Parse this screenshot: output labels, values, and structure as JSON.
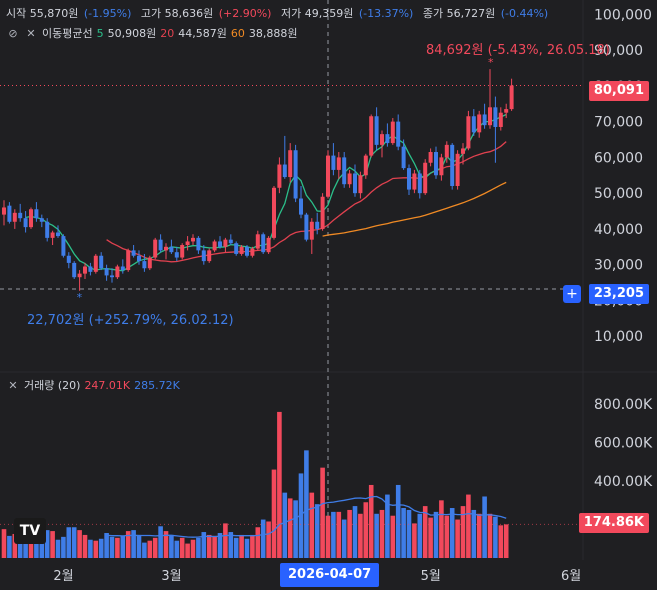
{
  "header": {
    "open_label": "시작",
    "open_value": "55,870원",
    "open_change": "(-1.95%)",
    "high_label": "고가",
    "high_value": "58,636원",
    "high_change": "(+2.90%)",
    "low_label": "저가",
    "low_value": "49,359원",
    "low_change": "(-13.37%)",
    "close_label": "종가",
    "close_value": "56,727원",
    "close_change": "(-0.44%)",
    "ma_label": "이동평균선",
    "ma5_period": "5",
    "ma5_value": "50,908원",
    "ma20_period": "20",
    "ma20_value": "44,587원",
    "ma60_period": "60",
    "ma60_value": "38,888원",
    "volume_label": "거래량 (20)",
    "volume_value": "247.01K",
    "volume_ma_value": "285.72K"
  },
  "annotations": {
    "high": "84,692원 (-5.43%, 26.05.18)",
    "low": "22,702원 (+252.79%, 26.02.12)"
  },
  "tags": {
    "last_price": "80,091",
    "crosshair_price": "23,205",
    "last_volume": "174.86K",
    "crosshair_date": "2026-04-07"
  },
  "colors": {
    "up": "#f2495c",
    "down": "#3f7de8",
    "ma5": "#2bbf8a",
    "ma20": "#e0414f",
    "ma60": "#f08a24",
    "vol_ma": "#3f7de8",
    "background": "#1f1f22",
    "grid": "#2a2a2e"
  },
  "chart_data": [
    {
      "type": "candlestick",
      "title": "",
      "y_ticks": [
        "100,000",
        "90,000",
        "80,000",
        "70,000",
        "60,000",
        "50,000",
        "40,000",
        "30,000",
        "20,000",
        "10,000"
      ],
      "ylim": [
        0,
        104000
      ],
      "x_ticks": [
        "2월",
        "3월",
        "4월",
        "5월",
        "6월"
      ],
      "last_price": 80091,
      "crosshair_price": 23205,
      "candles": [
        [
          44000,
          48000,
          41000,
          46000
        ],
        [
          46500,
          47500,
          41500,
          42000
        ],
        [
          42000,
          45500,
          40000,
          44500
        ],
        [
          44500,
          47000,
          42000,
          43000
        ],
        [
          43000,
          45000,
          39000,
          40500
        ],
        [
          40500,
          46000,
          40000,
          45500
        ],
        [
          45500,
          47500,
          42000,
          43000
        ],
        [
          43000,
          44000,
          40500,
          42000
        ],
        [
          42000,
          43000,
          36500,
          37500
        ],
        [
          37500,
          39500,
          35500,
          39000
        ],
        [
          39000,
          41000,
          37500,
          38000
        ],
        [
          38000,
          38500,
          32000,
          32500
        ],
        [
          32500,
          33500,
          29000,
          30500
        ],
        [
          30500,
          31000,
          26000,
          26500
        ],
        [
          26500,
          28500,
          22702,
          27500
        ],
        [
          27500,
          30500,
          26000,
          29500
        ],
        [
          29500,
          30500,
          27000,
          28000
        ],
        [
          28000,
          33000,
          27500,
          32500
        ],
        [
          32500,
          33500,
          28500,
          29000
        ],
        [
          29000,
          30000,
          25500,
          27000
        ],
        [
          27000,
          29000,
          25000,
          26500
        ],
        [
          26500,
          30000,
          26000,
          29500
        ],
        [
          29500,
          31500,
          27500,
          28500
        ],
        [
          28500,
          34500,
          28000,
          34000
        ],
        [
          34000,
          35500,
          32000,
          32500
        ],
        [
          32500,
          34000,
          30000,
          31000
        ],
        [
          31000,
          33000,
          28000,
          29000
        ],
        [
          29000,
          32500,
          28500,
          32000
        ],
        [
          32000,
          37500,
          31500,
          37000
        ],
        [
          37000,
          38500,
          33500,
          34000
        ],
        [
          34000,
          36000,
          31500,
          35000
        ],
        [
          35000,
          37000,
          33000,
          33500
        ],
        [
          33500,
          35000,
          31000,
          32000
        ],
        [
          32000,
          36000,
          31500,
          35500
        ],
        [
          35500,
          38000,
          34000,
          36500
        ],
        [
          36500,
          38500,
          35500,
          37500
        ],
        [
          37500,
          38000,
          33000,
          34000
        ],
        [
          34000,
          35500,
          30000,
          31000
        ],
        [
          31000,
          34500,
          30500,
          34000
        ],
        [
          34000,
          37000,
          33500,
          36500
        ],
        [
          36500,
          38000,
          34500,
          35000
        ],
        [
          35000,
          37500,
          33500,
          37000
        ],
        [
          37000,
          38500,
          35500,
          36000
        ],
        [
          36000,
          36500,
          32500,
          33000
        ],
        [
          33000,
          35500,
          32500,
          35000
        ],
        [
          35000,
          35500,
          32000,
          32500
        ],
        [
          32500,
          35000,
          32000,
          34500
        ],
        [
          34500,
          39500,
          34000,
          38500
        ],
        [
          38500,
          39000,
          33000,
          33500
        ],
        [
          33500,
          38000,
          33000,
          37500
        ],
        [
          37500,
          52000,
          37000,
          51500
        ],
        [
          51500,
          60000,
          50000,
          58000
        ],
        [
          58000,
          66000,
          54000,
          54500
        ],
        [
          54500,
          64000,
          53000,
          62000
        ],
        [
          62000,
          63500,
          47500,
          48500
        ],
        [
          48500,
          52000,
          43000,
          44000
        ],
        [
          44000,
          44500,
          36500,
          37000
        ],
        [
          37000,
          43000,
          33000,
          42000
        ],
        [
          42000,
          44500,
          38500,
          40000
        ],
        [
          40000,
          50000,
          39500,
          49000
        ],
        [
          49000,
          62000,
          48500,
          60500
        ],
        [
          60500,
          64000,
          55000,
          56500
        ],
        [
          56500,
          61500,
          54000,
          60000
        ],
        [
          60000,
          61500,
          51500,
          52500
        ],
        [
          52500,
          56500,
          51500,
          55500
        ],
        [
          55500,
          58000,
          49000,
          50000
        ],
        [
          50000,
          56000,
          48500,
          55000
        ],
        [
          55000,
          61000,
          54000,
          60500
        ],
        [
          60500,
          72000,
          60000,
          71500
        ],
        [
          71500,
          74000,
          62000,
          63500
        ],
        [
          63500,
          67500,
          60000,
          66500
        ],
        [
          66500,
          69500,
          63000,
          64000
        ],
        [
          64000,
          71000,
          63500,
          70000
        ],
        [
          70000,
          72000,
          62000,
          63000
        ],
        [
          63000,
          65000,
          56500,
          57000
        ],
        [
          57000,
          58000,
          49500,
          51000
        ],
        [
          51000,
          56500,
          50000,
          55500
        ],
        [
          55500,
          56500,
          48500,
          50000
        ],
        [
          50000,
          59500,
          49500,
          58500
        ],
        [
          58500,
          62500,
          57500,
          61500
        ],
        [
          61500,
          63000,
          54000,
          55000
        ],
        [
          55000,
          61000,
          53500,
          60000
        ],
        [
          60000,
          64500,
          58500,
          63500
        ],
        [
          63500,
          64000,
          51000,
          52000
        ],
        [
          52000,
          62000,
          51000,
          61000
        ],
        [
          61000,
          64000,
          58000,
          62500
        ],
        [
          62500,
          73000,
          62000,
          71500
        ],
        [
          71500,
          73500,
          66000,
          67000
        ],
        [
          67000,
          73000,
          65500,
          72000
        ],
        [
          72000,
          75000,
          68000,
          69000
        ],
        [
          69000,
          84692,
          68000,
          74000
        ],
        [
          74000,
          77000,
          58500,
          68500
        ],
        [
          68500,
          74000,
          67500,
          72500
        ],
        [
          72500,
          75000,
          71000,
          73500
        ],
        [
          73500,
          82000,
          73000,
          80091
        ]
      ],
      "ma5": [
        null,
        null,
        null,
        null,
        43200,
        43500,
        43100,
        42800,
        41700,
        41000,
        39900,
        37800,
        35500,
        33000,
        31100,
        30300,
        29100,
        28500,
        28800,
        28900,
        28700,
        28500,
        28300,
        29200,
        30100,
        31100,
        31500,
        31700,
        32400,
        33500,
        34200,
        35000,
        34800,
        34600,
        35000,
        35300,
        35300,
        34900,
        34700,
        34700,
        34900,
        35000,
        35600,
        35500,
        35200,
        35000,
        34600,
        35300,
        35400,
        36000,
        40000,
        44000,
        47100,
        52800,
        55000,
        53500,
        49400,
        47500,
        45000,
        44900,
        46700,
        50900,
        54000,
        55700,
        57200,
        56200,
        54500,
        55400,
        60500,
        62000,
        63000,
        65000,
        66000,
        65000,
        64000,
        61000,
        58300,
        55000,
        54300,
        55600,
        56400,
        57000,
        60300,
        58700,
        59300,
        61000,
        63800,
        66800,
        68600,
        70000,
        70000,
        70600,
        71300,
        72000
      ],
      "ma20": [
        null,
        null,
        null,
        null,
        null,
        null,
        null,
        null,
        null,
        null,
        null,
        null,
        null,
        null,
        null,
        null,
        null,
        null,
        null,
        37000,
        36000,
        35300,
        34500,
        34000,
        33300,
        32800,
        32100,
        31500,
        31300,
        31100,
        31000,
        30800,
        30900,
        31200,
        31500,
        31900,
        32200,
        32500,
        32700,
        33000,
        33200,
        33400,
        33500,
        33600,
        33600,
        33700,
        33800,
        34000,
        34100,
        34300,
        35000,
        36200,
        37100,
        38300,
        39000,
        39300,
        39400,
        39600,
        39800,
        40200,
        41100,
        42400,
        43600,
        44800,
        45900,
        47000,
        47700,
        48800,
        50300,
        51500,
        52500,
        53200,
        54100,
        54200,
        54300,
        54300,
        54300,
        54100,
        54700,
        55600,
        56300,
        56800,
        57400,
        57600,
        58200,
        58800,
        59600,
        60300,
        60800,
        61300,
        61600,
        62200,
        63100,
        64400
      ],
      "ma60": [
        null,
        null,
        null,
        null,
        null,
        null,
        null,
        null,
        null,
        null,
        null,
        null,
        null,
        null,
        null,
        null,
        null,
        null,
        null,
        null,
        null,
        null,
        null,
        null,
        null,
        null,
        null,
        null,
        null,
        null,
        null,
        null,
        null,
        null,
        null,
        null,
        null,
        null,
        null,
        null,
        null,
        null,
        null,
        null,
        null,
        null,
        null,
        null,
        null,
        null,
        null,
        null,
        null,
        null,
        null,
        null,
        null,
        null,
        null,
        38000,
        38300,
        38500,
        38700,
        38900,
        39200,
        39500,
        39800,
        40100,
        40500,
        40900,
        41200,
        41500,
        41900,
        42200,
        42500,
        42800,
        43100,
        43400,
        43800,
        44300,
        44800,
        45300,
        45800,
        46300,
        46800,
        47300,
        47900,
        48500,
        49200,
        49900,
        50700,
        51500,
        52300,
        53000
      ]
    },
    {
      "type": "bar",
      "title": "거래량 (20)",
      "y_ticks": [
        "800.00K",
        "600.00K",
        "400.00K"
      ],
      "ylim": [
        0,
        900000
      ],
      "last_volume": 174860,
      "volumes": [
        150000,
        115000,
        125000,
        95000,
        115000,
        135000,
        75000,
        95000,
        145000,
        140000,
        95000,
        110000,
        160000,
        160000,
        145000,
        120000,
        95000,
        90000,
        100000,
        130000,
        110000,
        105000,
        115000,
        140000,
        145000,
        120000,
        80000,
        90000,
        105000,
        165000,
        140000,
        120000,
        90000,
        105000,
        75000,
        95000,
        105000,
        135000,
        120000,
        115000,
        130000,
        180000,
        135000,
        105000,
        120000,
        100000,
        120000,
        160000,
        200000,
        190000,
        460000,
        760000,
        340000,
        310000,
        300000,
        440000,
        560000,
        340000,
        280000,
        470000,
        220000,
        240000,
        240000,
        200000,
        250000,
        270000,
        230000,
        290000,
        380000,
        230000,
        250000,
        330000,
        220000,
        380000,
        260000,
        250000,
        180000,
        230000,
        270000,
        210000,
        240000,
        300000,
        220000,
        260000,
        200000,
        270000,
        330000,
        250000,
        230000,
        320000,
        230000,
        215000,
        170000,
        174860
      ],
      "volume_ma": [
        null,
        null,
        null,
        null,
        null,
        null,
        null,
        null,
        null,
        null,
        null,
        null,
        null,
        null,
        null,
        null,
        null,
        null,
        null,
        118000,
        116000,
        116000,
        115000,
        117000,
        118000,
        117000,
        117000,
        117000,
        115000,
        116000,
        118000,
        118000,
        115000,
        112000,
        109000,
        108000,
        109000,
        112000,
        113000,
        112000,
        113000,
        117000,
        118000,
        116000,
        116000,
        116000,
        116000,
        117000,
        122000,
        125000,
        142000,
        174000,
        185000,
        197000,
        207000,
        225000,
        248000,
        258000,
        265000,
        283000,
        288000,
        291000,
        296000,
        300000,
        306000,
        311000,
        312000,
        309000,
        318000,
        320000,
        307000,
        280000,
        274000,
        277000,
        275000,
        266000,
        247000,
        237000,
        236000,
        223000,
        224000,
        227000,
        226000,
        229000,
        226000,
        226000,
        231000,
        229000,
        222000,
        225000,
        225000,
        221000,
        216000,
        207000
      ]
    }
  ]
}
